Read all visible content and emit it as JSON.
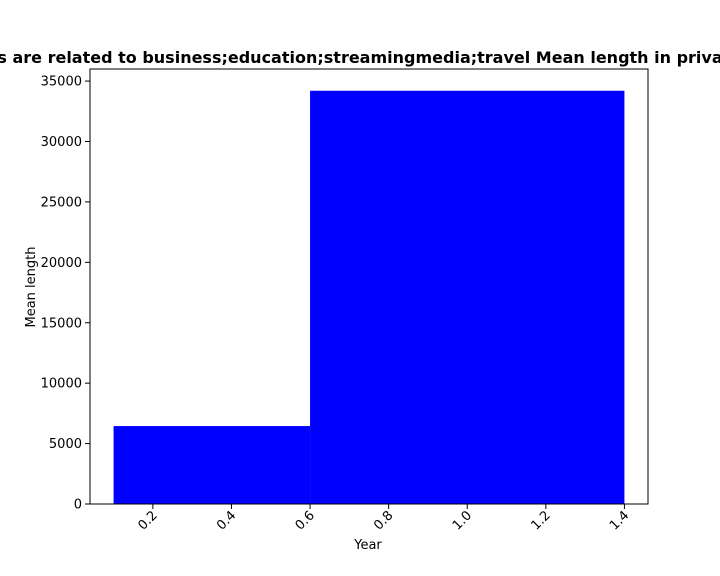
{
  "chart_data": {
    "type": "bar",
    "title": "s are related to business;education;streamingmedia;travel Mean length in priva",
    "xlabel": "Year",
    "ylabel": "Mean length",
    "bars": [
      {
        "x0": 0.1,
        "x1": 0.6,
        "value": 6450
      },
      {
        "x0": 0.6,
        "x1": 1.4,
        "value": 34200
      }
    ],
    "xlim": [
      0.04,
      1.46
    ],
    "ylim": [
      0,
      36000
    ],
    "xticks": [
      {
        "value": 0.2,
        "label": "0.2"
      },
      {
        "value": 0.4,
        "label": "0.4"
      },
      {
        "value": 0.6,
        "label": "0.6"
      },
      {
        "value": 0.8,
        "label": "0.8"
      },
      {
        "value": 1.0,
        "label": "1.0"
      },
      {
        "value": 1.2,
        "label": "1.2"
      },
      {
        "value": 1.4,
        "label": "1.4"
      }
    ],
    "yticks": [
      {
        "value": 0,
        "label": "0"
      },
      {
        "value": 5000,
        "label": "5000"
      },
      {
        "value": 10000,
        "label": "10000"
      },
      {
        "value": 15000,
        "label": "15000"
      },
      {
        "value": 20000,
        "label": "20000"
      },
      {
        "value": 25000,
        "label": "25000"
      },
      {
        "value": 30000,
        "label": "30000"
      },
      {
        "value": 35000,
        "label": "35000"
      }
    ],
    "grid": false,
    "bar_color": "#0000ff",
    "xtick_rotation_deg": 45
  }
}
